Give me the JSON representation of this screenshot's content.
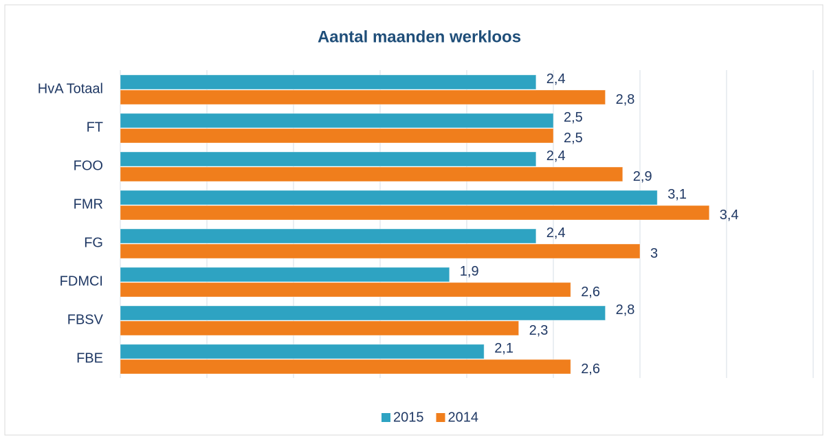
{
  "chart_data": {
    "type": "hbar",
    "title": "Aantal maanden werkloos",
    "categories": [
      "HvA Totaal",
      "FT",
      "FOO",
      "FMR",
      "FG",
      "FDMCI",
      "FBSV",
      "FBE"
    ],
    "series": [
      {
        "name": "2015",
        "color": "#2ea3c2",
        "values": [
          2.4,
          2.5,
          2.4,
          3.1,
          2.4,
          1.9,
          2.8,
          2.1
        ],
        "value_labels": [
          "2,4",
          "2,5",
          "2,4",
          "3,1",
          "2,4",
          "1,9",
          "2,8",
          "2,1"
        ]
      },
      {
        "name": "2014",
        "color": "#f07e1c",
        "values": [
          2.8,
          2.5,
          2.9,
          3.4,
          3,
          2.6,
          2.3,
          2.6
        ],
        "value_labels": [
          "2,8",
          "2,5",
          "2,9",
          "3,4",
          "3",
          "2,6",
          "2,3",
          "2,6"
        ]
      }
    ],
    "xlim": [
      0,
      4
    ],
    "xticks": [
      0,
      0.5,
      1,
      1.5,
      2,
      2.5,
      3,
      3.5,
      4
    ],
    "grid": true,
    "legend": "bottom"
  }
}
